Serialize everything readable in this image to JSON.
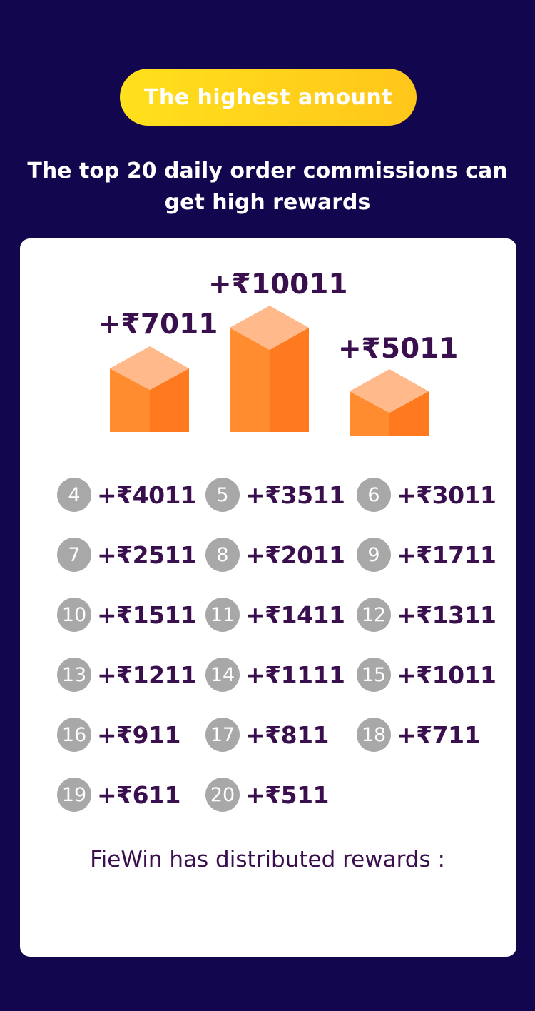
{
  "header": {
    "badge": "The highest amount",
    "subtitle": "The top 20 daily order commissions can get high rewards"
  },
  "podium": {
    "first": "+₹10011",
    "second": "+₹7011",
    "third": "+₹5011"
  },
  "rewards": [
    {
      "rank": "4",
      "amount": "+₹4011"
    },
    {
      "rank": "5",
      "amount": "+₹3511"
    },
    {
      "rank": "6",
      "amount": "+₹3011"
    },
    {
      "rank": "7",
      "amount": "+₹2511"
    },
    {
      "rank": "8",
      "amount": "+₹2011"
    },
    {
      "rank": "9",
      "amount": "+₹1711"
    },
    {
      "rank": "10",
      "amount": "+₹1511"
    },
    {
      "rank": "11",
      "amount": "+₹1411"
    },
    {
      "rank": "12",
      "amount": "+₹1311"
    },
    {
      "rank": "13",
      "amount": "+₹1211"
    },
    {
      "rank": "14",
      "amount": "+₹1111"
    },
    {
      "rank": "15",
      "amount": "+₹1011"
    },
    {
      "rank": "16",
      "amount": "+₹911"
    },
    {
      "rank": "17",
      "amount": "+₹811"
    },
    {
      "rank": "18",
      "amount": "+₹711"
    },
    {
      "rank": "19",
      "amount": "+₹611"
    },
    {
      "rank": "20",
      "amount": "+₹511"
    }
  ],
  "footer": {
    "text": "FieWin has distributed rewards :"
  },
  "colors": {
    "background": "#12074f",
    "badge": "#ffd21b",
    "amount_text": "#3a0f4e",
    "rank_circle": "#a8a8a8",
    "box_top": "#ffb98a",
    "box_left": "#ff8d30",
    "box_right": "#ff7a1f"
  }
}
